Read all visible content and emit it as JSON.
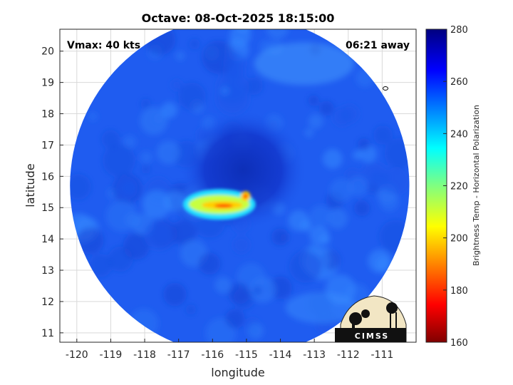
{
  "chart_data": {
    "type": "heatmap",
    "title": "Octave: 08-Oct-2025 18:15:00",
    "xlabel": "longitude",
    "ylabel": "latitude",
    "xlim": [
      -120.5,
      -110.0
    ],
    "ylim": [
      10.7,
      20.7
    ],
    "x_ticks": [
      -120,
      -119,
      -118,
      -117,
      -116,
      -115,
      -114,
      -113,
      -112,
      -111
    ],
    "y_ticks": [
      11,
      12,
      13,
      14,
      15,
      16,
      17,
      18,
      19,
      20
    ],
    "grid": true,
    "annotations": {
      "vmax": "Vmax: 40 kts",
      "time_away": "06:21 away"
    },
    "colorbar": {
      "label": "Brightness Temp - Horizontal Polarization",
      "range": [
        160,
        280
      ],
      "ticks": [
        160,
        180,
        200,
        220,
        240,
        260,
        280
      ],
      "colormap": "jet"
    },
    "swath": {
      "center_lon": -115.2,
      "center_lat": 15.7,
      "radius_deg": 5.0
    },
    "storm_center": {
      "lon": -115.1,
      "lat": 15.6
    },
    "cold_feature": {
      "lon_min": -116.7,
      "lon_max": -114.9,
      "lat_min": 14.8,
      "lat_max": 15.5,
      "min_temp": 165
    },
    "logo": "CIMSS"
  },
  "colors": {
    "background_field": "#1f5cf0",
    "grid": "#d9d9d9",
    "logo_bg": "#f2e6c4"
  }
}
